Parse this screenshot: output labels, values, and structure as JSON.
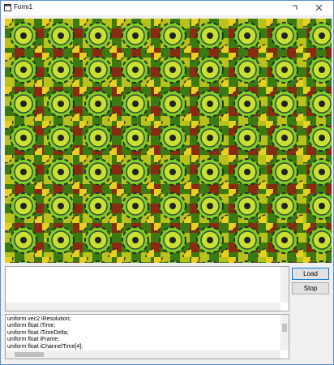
{
  "window": {
    "title": "Form1"
  },
  "buttons": [
    "Load",
    "Stop"
  ],
  "code_lines": [
    "uniform vec2 iResolution;",
    "uniform float iTime;",
    "uniform float iTimeDelta;",
    "uniform float iFrame;",
    "uniform float iChannelTime[4];"
  ]
}
